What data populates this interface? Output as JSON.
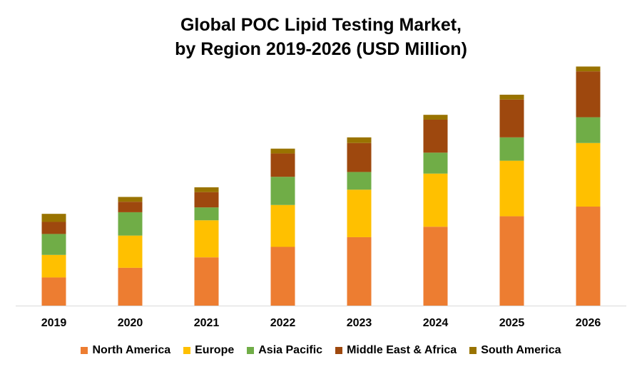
{
  "chart_data": {
    "type": "bar",
    "stacked": true,
    "title": "Global POC Lipid Testing Market,",
    "subtitle": "by Region 2019-2026 (USD Million)",
    "categories": [
      "2019",
      "2020",
      "2021",
      "2022",
      "2023",
      "2024",
      "2025",
      "2026"
    ],
    "series": [
      {
        "name": "North America",
        "color": "#ED7D31",
        "values": [
          35,
          47,
          60,
          73,
          85,
          98,
          111,
          123
        ]
      },
      {
        "name": "Europe",
        "color": "#FFC000",
        "values": [
          28,
          40,
          46,
          52,
          59,
          66,
          69,
          79
        ]
      },
      {
        "name": "Asia Pacific",
        "color": "#70AD47",
        "values": [
          26,
          29,
          16,
          35,
          22,
          26,
          29,
          32
        ]
      },
      {
        "name": "Middle East & Africa",
        "color": "#9E480E",
        "values": [
          15,
          13,
          19,
          29,
          36,
          41,
          47,
          57
        ]
      },
      {
        "name": "South America",
        "color": "#997300",
        "values": [
          10,
          6,
          6,
          6,
          7,
          6,
          6,
          6
        ]
      }
    ],
    "ylim": [
      0,
      300
    ],
    "legend_position": "bottom",
    "grid": false
  }
}
